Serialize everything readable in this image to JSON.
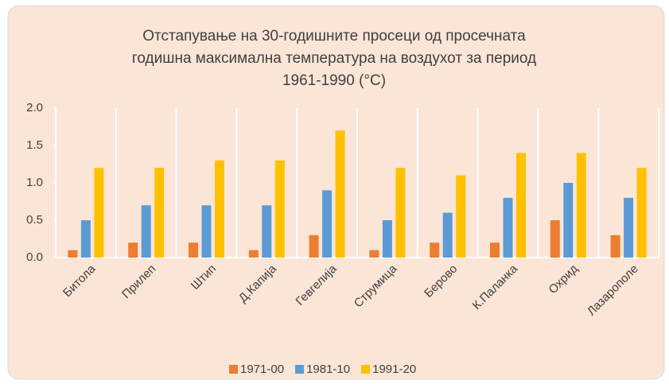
{
  "chart_data": {
    "type": "bar",
    "title": [
      "Отстапување на 30-годишните просеци од просечната",
      "годишна максимална температура на воздухот за период",
      "1961-1990 (°C)"
    ],
    "categories": [
      "Битола",
      "Прилеп",
      "Штип",
      "Д.Капија",
      "Гевгелија",
      "Струмица",
      "Берово",
      "К.Паланка",
      "Охрид",
      "Лазарополе"
    ],
    "series": [
      {
        "name": "1971-00",
        "color": "#ed7d31",
        "values": [
          0.1,
          0.2,
          0.2,
          0.1,
          0.3,
          0.1,
          0.2,
          0.2,
          0.5,
          0.3
        ]
      },
      {
        "name": "1981-10",
        "color": "#5b9bd5",
        "values": [
          0.5,
          0.7,
          0.7,
          0.7,
          0.9,
          0.5,
          0.6,
          0.8,
          1.0,
          0.8
        ]
      },
      {
        "name": "1991-20",
        "color": "#ffc000",
        "values": [
          1.2,
          1.2,
          1.3,
          1.3,
          1.7,
          1.2,
          1.1,
          1.4,
          1.4,
          1.2
        ]
      }
    ],
    "ylim": [
      0,
      2
    ],
    "yticks": [
      {
        "value": 0,
        "label": "0.0"
      },
      0.5,
      {
        "value": 1,
        "label": "1.0"
      },
      1.5,
      {
        "value": 2,
        "label": "2.0"
      }
    ],
    "legend": "bottom"
  }
}
